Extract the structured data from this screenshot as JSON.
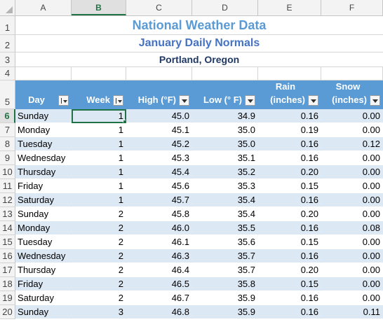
{
  "columns": [
    "A",
    "B",
    "C",
    "D",
    "E",
    "F"
  ],
  "active_column": "B",
  "active_row": "6",
  "titles": {
    "title": "National Weather Data",
    "subtitle": "January Daily Normals",
    "location": "Portland, Oregon"
  },
  "headers": {
    "day": "Day",
    "week": "Week",
    "high": "High (°F)",
    "low": "Low (° F)",
    "rain_line1": "Rain",
    "rain_line2": "(inches)",
    "snow_line1": "Snow",
    "snow_line2": "(inches)"
  },
  "row_numbers": [
    "1",
    "2",
    "3",
    "4",
    "5",
    "6",
    "7",
    "8",
    "9",
    "10",
    "11",
    "12",
    "13",
    "14",
    "15",
    "16",
    "17",
    "18",
    "19",
    "20"
  ],
  "rows": [
    {
      "day": "Sunday",
      "week": "1",
      "high": "45.0",
      "low": "34.9",
      "rain": "0.16",
      "snow": "0.00"
    },
    {
      "day": "Monday",
      "week": "1",
      "high": "45.1",
      "low": "35.0",
      "rain": "0.19",
      "snow": "0.00"
    },
    {
      "day": "Tuesday",
      "week": "1",
      "high": "45.2",
      "low": "35.0",
      "rain": "0.16",
      "snow": "0.12"
    },
    {
      "day": "Wednesday",
      "week": "1",
      "high": "45.3",
      "low": "35.1",
      "rain": "0.16",
      "snow": "0.00"
    },
    {
      "day": "Thursday",
      "week": "1",
      "high": "45.4",
      "low": "35.2",
      "rain": "0.20",
      "snow": "0.00"
    },
    {
      "day": "Friday",
      "week": "1",
      "high": "45.6",
      "low": "35.3",
      "rain": "0.15",
      "snow": "0.00"
    },
    {
      "day": "Saturday",
      "week": "1",
      "high": "45.7",
      "low": "35.4",
      "rain": "0.16",
      "snow": "0.00"
    },
    {
      "day": "Sunday",
      "week": "2",
      "high": "45.8",
      "low": "35.4",
      "rain": "0.20",
      "snow": "0.00"
    },
    {
      "day": "Monday",
      "week": "2",
      "high": "46.0",
      "low": "35.5",
      "rain": "0.16",
      "snow": "0.08"
    },
    {
      "day": "Tuesday",
      "week": "2",
      "high": "46.1",
      "low": "35.6",
      "rain": "0.15",
      "snow": "0.00"
    },
    {
      "day": "Wednesday",
      "week": "2",
      "high": "46.3",
      "low": "35.7",
      "rain": "0.16",
      "snow": "0.00"
    },
    {
      "day": "Thursday",
      "week": "2",
      "high": "46.4",
      "low": "35.7",
      "rain": "0.20",
      "snow": "0.00"
    },
    {
      "day": "Friday",
      "week": "2",
      "high": "46.5",
      "low": "35.8",
      "rain": "0.15",
      "snow": "0.00"
    },
    {
      "day": "Saturday",
      "week": "2",
      "high": "46.7",
      "low": "35.9",
      "rain": "0.16",
      "snow": "0.00"
    },
    {
      "day": "Sunday",
      "week": "3",
      "high": "46.8",
      "low": "35.9",
      "rain": "0.16",
      "snow": "0.11"
    }
  ],
  "colors": {
    "header_fill": "#5b9bd5",
    "band_fill": "#dde8f5",
    "title_color": "#5b9bd5",
    "selection": "#217346"
  }
}
